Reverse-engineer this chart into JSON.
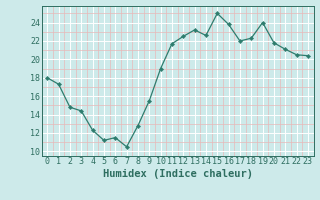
{
  "x": [
    0,
    1,
    2,
    3,
    4,
    5,
    6,
    7,
    8,
    9,
    10,
    11,
    12,
    13,
    14,
    15,
    16,
    17,
    18,
    19,
    20,
    21,
    22,
    23
  ],
  "y": [
    18.0,
    17.3,
    14.8,
    14.4,
    12.3,
    11.2,
    11.5,
    10.5,
    12.8,
    15.5,
    19.0,
    21.7,
    22.5,
    23.2,
    22.6,
    25.0,
    23.8,
    22.0,
    22.3,
    24.0,
    21.8,
    21.1,
    20.5,
    20.4
  ],
  "line_color": "#2e7d6e",
  "marker": "D",
  "marker_size": 2.2,
  "bg_color": "#cdeaea",
  "grid_major_color": "#ffffff",
  "grid_minor_color": "#e8b8b8",
  "xlabel": "Humidex (Indice chaleur)",
  "ylim": [
    9.5,
    25.8
  ],
  "xlim": [
    -0.5,
    23.5
  ],
  "yticks": [
    10,
    12,
    14,
    16,
    18,
    20,
    22,
    24
  ],
  "xticks": [
    0,
    1,
    2,
    3,
    4,
    5,
    6,
    7,
    8,
    9,
    10,
    11,
    12,
    13,
    14,
    15,
    16,
    17,
    18,
    19,
    20,
    21,
    22,
    23
  ],
  "font_color": "#2e6e60",
  "tick_fontsize": 6,
  "xlabel_fontsize": 7.5,
  "linewidth": 0.9
}
